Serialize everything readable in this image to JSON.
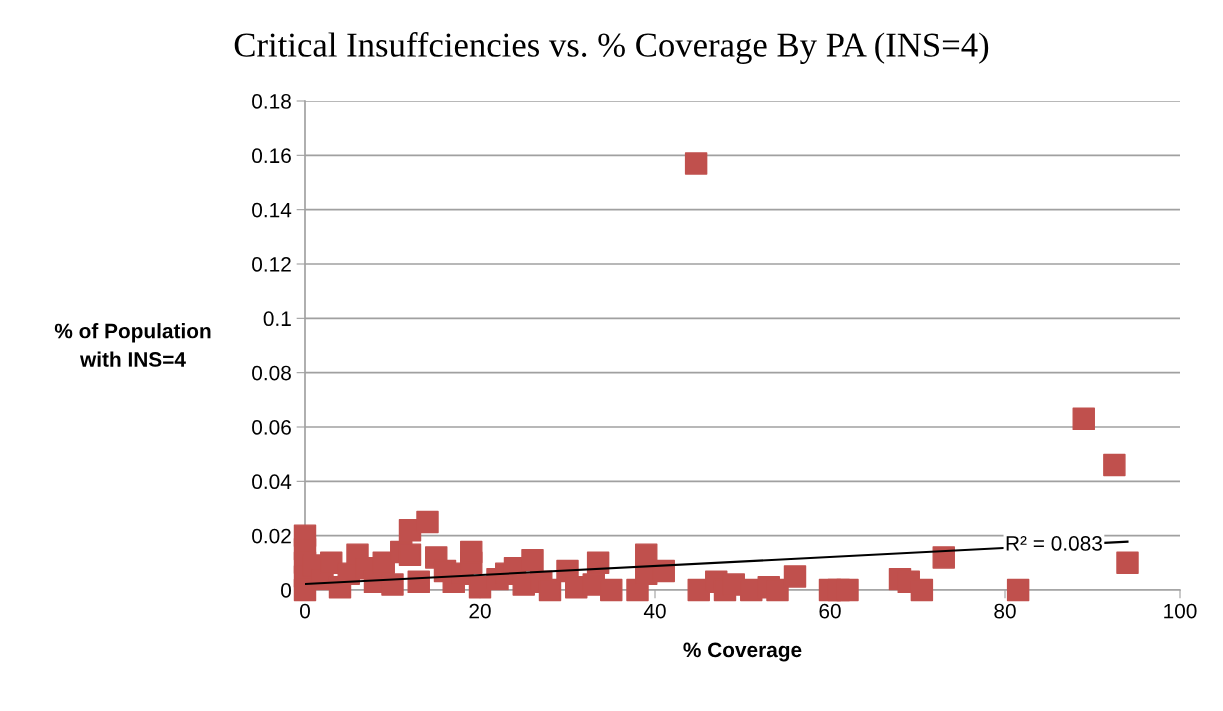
{
  "chart_data": {
    "type": "scatter",
    "title": "Critical Insuffciencies vs. % Coverage By PA (INS=4)",
    "xlabel": "% Coverage",
    "ylabel": "% of Population\nwith INS=4",
    "xlim": [
      0,
      100
    ],
    "xticks": [
      0,
      20,
      40,
      60,
      80,
      100
    ],
    "ylim": [
      0,
      0.18
    ],
    "yticks": [
      0,
      0.02,
      0.04,
      0.06,
      0.08,
      0.1,
      0.12,
      0.14,
      0.16,
      0.18
    ],
    "grid": "y",
    "series": [
      {
        "marker": "square",
        "color": "#c0504d",
        "x": [
          0,
          0,
          0,
          0,
          0,
          1,
          2,
          3,
          4,
          5,
          6,
          7,
          8,
          9,
          10,
          11,
          12,
          12,
          13,
          14,
          15,
          16,
          17,
          18,
          19,
          19,
          20,
          22,
          23,
          24,
          25,
          26,
          27,
          28,
          30,
          31,
          33,
          33.5,
          35,
          38,
          39,
          39,
          41,
          44.7,
          45,
          47,
          48,
          49,
          51,
          53,
          54,
          56,
          60,
          61,
          62,
          68,
          69,
          70.5,
          73,
          81.5,
          89,
          92.5,
          94
        ],
        "values": [
          0.02,
          0.015,
          0.01,
          0.005,
          0,
          0.009,
          0.004,
          0.01,
          0.001,
          0.006,
          0.013,
          0.008,
          0.003,
          0.01,
          0.002,
          0.014,
          0.022,
          0.013,
          0.003,
          0.025,
          0.012,
          0.007,
          0.003,
          0.006,
          0.01,
          0.014,
          0.001,
          0.004,
          0.006,
          0.008,
          0.002,
          0.011,
          0.003,
          0,
          0.007,
          0.001,
          0.002,
          0.01,
          0,
          0,
          0.013,
          0.006,
          0.007,
          0.157,
          0,
          0.003,
          0,
          0.002,
          0,
          0.001,
          0,
          0.005,
          0,
          0,
          0,
          0.004,
          0.003,
          0,
          0.012,
          0,
          0.063,
          0.046,
          0.01
        ]
      },
      {
        "type": "line",
        "marker": "none",
        "color": "#000000",
        "x": [
          0,
          94
        ],
        "values": [
          0.0022,
          0.0178
        ]
      }
    ],
    "annotations": [
      {
        "text": "R² = 0.083",
        "x": 80,
        "y": 0.0165
      }
    ]
  }
}
